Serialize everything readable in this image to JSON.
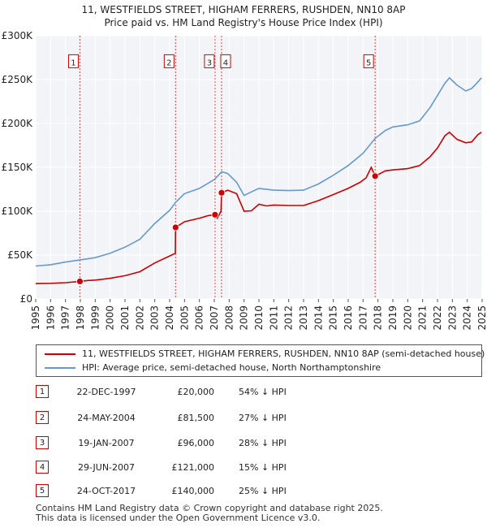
{
  "title_line1": "11, WESTFIELDS STREET, HIGHAM FERRERS, RUSHDEN, NN10 8AP",
  "title_line2": "Price paid vs. HM Land Registry's House Price Index (HPI)",
  "chart_data": {
    "type": "line",
    "title": "11, WESTFIELDS STREET, HIGHAM FERRERS, RUSHDEN, NN10 8AP — Price paid vs. HM Land Registry's House Price Index (HPI)",
    "xlabel": "",
    "ylabel": "",
    "xlim": [
      1995,
      2025
    ],
    "ylim": [
      0,
      300000
    ],
    "x_ticks": [
      "1995",
      "1996",
      "1997",
      "1998",
      "1999",
      "2000",
      "2001",
      "2002",
      "2003",
      "2004",
      "2005",
      "2006",
      "2007",
      "2008",
      "2009",
      "2010",
      "2011",
      "2012",
      "2013",
      "2014",
      "2015",
      "2016",
      "2017",
      "2018",
      "2019",
      "2020",
      "2021",
      "2022",
      "2023",
      "2024",
      "2025"
    ],
    "y_ticks": [
      {
        "value": 0,
        "label": "£0"
      },
      {
        "value": 50000,
        "label": "£50K"
      },
      {
        "value": 100000,
        "label": "£100K"
      },
      {
        "value": 150000,
        "label": "£150K"
      },
      {
        "value": 200000,
        "label": "£200K"
      },
      {
        "value": 250000,
        "label": "£250K"
      },
      {
        "value": 300000,
        "label": "£300K"
      }
    ],
    "grid": true,
    "series": [
      {
        "name": "11, WESTFIELDS STREET, HIGHAM FERRERS, RUSHDEN, NN10 8AP (semi-detached house)",
        "color": "#cc0000",
        "points": [
          [
            1995.0,
            17500
          ],
          [
            1996.0,
            17800
          ],
          [
            1997.0,
            18500
          ],
          [
            1997.97,
            20000
          ],
          [
            1998.5,
            21000
          ],
          [
            1999.0,
            21500
          ],
          [
            2000.0,
            23500
          ],
          [
            2001.0,
            26500
          ],
          [
            2002.0,
            31000
          ],
          [
            2003.0,
            41000
          ],
          [
            2004.0,
            49000
          ],
          [
            2004.38,
            52000
          ],
          [
            2004.4,
            81500
          ],
          [
            2005.0,
            88000
          ],
          [
            2006.0,
            92000
          ],
          [
            2006.6,
            95000
          ],
          [
            2007.05,
            96000
          ],
          [
            2007.2,
            92000
          ],
          [
            2007.45,
            100000
          ],
          [
            2007.49,
            121000
          ],
          [
            2007.9,
            124000
          ],
          [
            2008.5,
            120000
          ],
          [
            2009.0,
            100000
          ],
          [
            2009.5,
            100500
          ],
          [
            2010.0,
            108000
          ],
          [
            2010.5,
            106000
          ],
          [
            2011.0,
            107000
          ],
          [
            2012.0,
            106500
          ],
          [
            2013.0,
            106500
          ],
          [
            2014.0,
            112000
          ],
          [
            2015.0,
            119000
          ],
          [
            2016.0,
            126000
          ],
          [
            2016.8,
            133000
          ],
          [
            2017.2,
            138000
          ],
          [
            2017.55,
            150000
          ],
          [
            2017.81,
            140000
          ],
          [
            2018.5,
            146000
          ],
          [
            2019.0,
            147000
          ],
          [
            2020.0,
            148500
          ],
          [
            2020.8,
            152000
          ],
          [
            2021.5,
            162000
          ],
          [
            2022.0,
            172000
          ],
          [
            2022.5,
            186000
          ],
          [
            2022.8,
            190000
          ],
          [
            2023.3,
            182000
          ],
          [
            2023.9,
            178000
          ],
          [
            2024.3,
            179000
          ],
          [
            2024.7,
            187000
          ],
          [
            2024.95,
            190000
          ]
        ]
      },
      {
        "name": "HPI: Average price, semi-detached house, North Northamptonshire",
        "color": "#6699cc",
        "points": [
          [
            1995.0,
            37500
          ],
          [
            1996.0,
            39000
          ],
          [
            1997.0,
            42000
          ],
          [
            1998.0,
            44500
          ],
          [
            1999.0,
            47000
          ],
          [
            2000.0,
            52000
          ],
          [
            2001.0,
            59000
          ],
          [
            2002.0,
            68000
          ],
          [
            2003.0,
            86000
          ],
          [
            2004.0,
            101000
          ],
          [
            2004.4,
            110000
          ],
          [
            2005.0,
            120000
          ],
          [
            2006.0,
            126000
          ],
          [
            2007.0,
            136000
          ],
          [
            2007.5,
            145000
          ],
          [
            2007.9,
            143000
          ],
          [
            2008.5,
            133000
          ],
          [
            2009.0,
            118000
          ],
          [
            2009.5,
            122000
          ],
          [
            2010.0,
            126000
          ],
          [
            2011.0,
            124000
          ],
          [
            2012.0,
            123500
          ],
          [
            2013.0,
            124000
          ],
          [
            2014.0,
            131000
          ],
          [
            2015.0,
            141000
          ],
          [
            2016.0,
            152000
          ],
          [
            2017.0,
            166000
          ],
          [
            2017.81,
            183000
          ],
          [
            2018.5,
            192000
          ],
          [
            2019.0,
            196000
          ],
          [
            2020.0,
            198500
          ],
          [
            2020.8,
            203000
          ],
          [
            2021.5,
            218000
          ],
          [
            2022.0,
            232000
          ],
          [
            2022.5,
            246000
          ],
          [
            2022.8,
            252000
          ],
          [
            2023.3,
            244000
          ],
          [
            2023.9,
            237000
          ],
          [
            2024.3,
            240000
          ],
          [
            2024.7,
            247000
          ],
          [
            2024.95,
            252000
          ]
        ]
      }
    ],
    "sales": [
      {
        "id": "1",
        "x": 1997.97,
        "value": 20000
      },
      {
        "id": "2",
        "x": 2004.4,
        "value": 81500
      },
      {
        "id": "3",
        "x": 2007.05,
        "value": 96000
      },
      {
        "id": "4",
        "x": 2007.49,
        "value": 121000
      },
      {
        "id": "5",
        "x": 2017.81,
        "value": 140000
      }
    ],
    "marker_label_value": 270000
  },
  "legend": {
    "items": [
      {
        "label": "11, WESTFIELDS STREET, HIGHAM FERRERS, RUSHDEN, NN10 8AP (semi-detached house)",
        "color": "#cc0000"
      },
      {
        "label": "HPI: Average price, semi-detached house, North Northamptonshire",
        "color": "#6699cc"
      }
    ]
  },
  "sales_table": [
    {
      "num": "1",
      "date": "22-DEC-1997",
      "price": "£20,000",
      "hpi": "54% ↓ HPI"
    },
    {
      "num": "2",
      "date": "24-MAY-2004",
      "price": "£81,500",
      "hpi": "27% ↓ HPI"
    },
    {
      "num": "3",
      "date": "19-JAN-2007",
      "price": "£96,000",
      "hpi": "28% ↓ HPI"
    },
    {
      "num": "4",
      "date": "29-JUN-2007",
      "price": "£121,000",
      "hpi": "15% ↓ HPI"
    },
    {
      "num": "5",
      "date": "24-OCT-2017",
      "price": "£140,000",
      "hpi": "25% ↓ HPI"
    }
  ],
  "footer": {
    "line1": "Contains HM Land Registry data © Crown copyright and database right 2025.",
    "line2": "This data is licensed under the Open Government Licence v3.0."
  }
}
